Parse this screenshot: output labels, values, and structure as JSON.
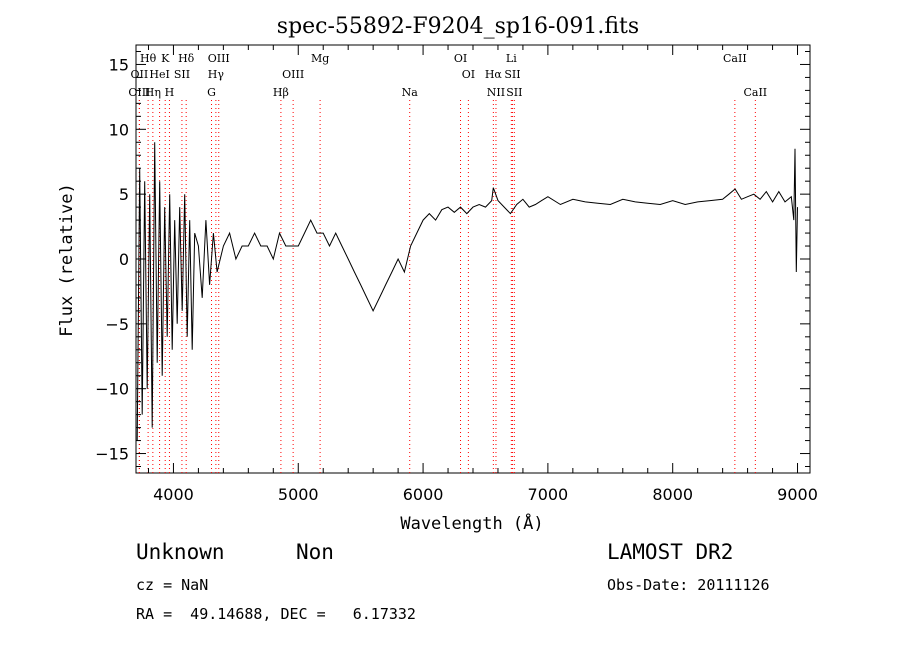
{
  "chart_data": {
    "type": "line",
    "title": "spec-55892-F9204_sp16-091.fits",
    "xlabel": "Wavelength (Å)",
    "ylabel": "Flux (relative)",
    "xlim": [
      3700,
      9100
    ],
    "ylim": [
      -16.5,
      16.5
    ],
    "x_ticks": [
      4000,
      5000,
      6000,
      7000,
      8000,
      9000
    ],
    "y_ticks": [
      -15,
      -10,
      -5,
      0,
      5,
      10,
      15
    ],
    "grid": false,
    "legend": "none",
    "line_color": "#000000",
    "marker_color": "#ff0000",
    "series": [
      {
        "x": [
          3710,
          3730,
          3750,
          3770,
          3790,
          3810,
          3830,
          3850,
          3870,
          3890,
          3910,
          3930,
          3950,
          3970,
          3990,
          4010,
          4030,
          4050,
          4070,
          4090,
          4110,
          4130,
          4150,
          4170,
          4200,
          4230,
          4260,
          4290,
          4320,
          4350,
          4400,
          4450,
          4500,
          4550,
          4600,
          4650,
          4700,
          4750,
          4800,
          4850,
          4900,
          4950,
          5000,
          5050,
          5100,
          5150,
          5200,
          5250,
          5300,
          5350,
          5400,
          5450,
          5500,
          5550,
          5600,
          5650,
          5700,
          5750,
          5800,
          5850,
          5900,
          5950,
          6000,
          6050,
          6100,
          6150,
          6200,
          6250,
          6300,
          6350,
          6400,
          6450,
          6500,
          6550,
          6563,
          6600,
          6650,
          6700,
          6750,
          6800,
          6850,
          6900,
          6950,
          7000,
          7100,
          7200,
          7300,
          7400,
          7500,
          7600,
          7700,
          7800,
          7900,
          8000,
          8100,
          8200,
          8300,
          8400,
          8450,
          8500,
          8550,
          8600,
          8650,
          8700,
          8750,
          8800,
          8850,
          8900,
          8950,
          8970,
          8980,
          8990,
          9000
        ],
        "y": [
          -14,
          7,
          -12,
          6,
          -10,
          5,
          -13,
          9,
          -8,
          6,
          -9,
          4,
          -6,
          5,
          -7,
          3,
          -5,
          4,
          -4,
          5,
          -6,
          3,
          -7,
          2,
          1,
          -3,
          3,
          -2,
          2,
          -1,
          1,
          2,
          0,
          1,
          1,
          2,
          1,
          1,
          0,
          2,
          1,
          1,
          1,
          2,
          3,
          2,
          2,
          1,
          2,
          1,
          0,
          -1,
          -2,
          -3,
          -4,
          -3,
          -2,
          -1,
          0,
          -1,
          1,
          2,
          3,
          3.5,
          3,
          3.8,
          4,
          3.6,
          4,
          3.5,
          4,
          4.2,
          4,
          4.5,
          5.5,
          4.5,
          4,
          3.5,
          4.2,
          4.6,
          4,
          4.2,
          4.5,
          4.8,
          4.2,
          4.6,
          4.4,
          4.3,
          4.2,
          4.6,
          4.4,
          4.3,
          4.2,
          4.5,
          4.2,
          4.4,
          4.5,
          4.6,
          5,
          5.4,
          4.6,
          4.8,
          5,
          4.6,
          5.2,
          4.4,
          5.2,
          4.4,
          4.8,
          3,
          8.5,
          -1,
          4
        ]
      }
    ],
    "lines": [
      {
        "label": "Hθ",
        "x": 3797,
        "row": 0
      },
      {
        "label": "OII",
        "x": 3727,
        "row": 1
      },
      {
        "label": "OIII",
        "x": 3727,
        "row": 2
      },
      {
        "label": "HeI",
        "x": 3889,
        "row": 1
      },
      {
        "label": "Hη",
        "x": 3835,
        "row": 2
      },
      {
        "label": "K",
        "x": 3934,
        "row": 0
      },
      {
        "label": "SII",
        "x": 4068,
        "row": 1
      },
      {
        "label": "H",
        "x": 3968,
        "row": 2
      },
      {
        "label": "Hδ",
        "x": 4102,
        "row": 0
      },
      {
        "label": "OIII",
        "x": 4363,
        "row": 0
      },
      {
        "label": "Hγ",
        "x": 4340,
        "row": 1
      },
      {
        "label": "G",
        "x": 4305,
        "row": 2
      },
      {
        "label": "OIII",
        "x": 4959,
        "row": 1
      },
      {
        "label": "Hβ",
        "x": 4861,
        "row": 2
      },
      {
        "label": "Mg",
        "x": 5175,
        "row": 0
      },
      {
        "label": "Na",
        "x": 5893,
        "row": 2
      },
      {
        "label": "OI",
        "x": 6300,
        "row": 0
      },
      {
        "label": "OI",
        "x": 6363,
        "row": 1
      },
      {
        "label": "Hα",
        "x": 6563,
        "row": 1
      },
      {
        "label": "NII",
        "x": 6584,
        "row": 2
      },
      {
        "label": "Li",
        "x": 6707,
        "row": 0
      },
      {
        "label": "SII",
        "x": 6716,
        "row": 1
      },
      {
        "label": "SII",
        "x": 6731,
        "row": 2
      },
      {
        "label": "CaII",
        "x": 8498,
        "row": 0
      },
      {
        "label": "CaII",
        "x": 8662,
        "row": 2
      }
    ]
  },
  "info": {
    "class": "Unknown",
    "subclass": "Non",
    "survey": "LAMOST DR2",
    "cz": "cz = NaN",
    "obs_date": "Obs-Date: 20111126",
    "coords": "RA =  49.14688, DEC =   6.17332"
  }
}
